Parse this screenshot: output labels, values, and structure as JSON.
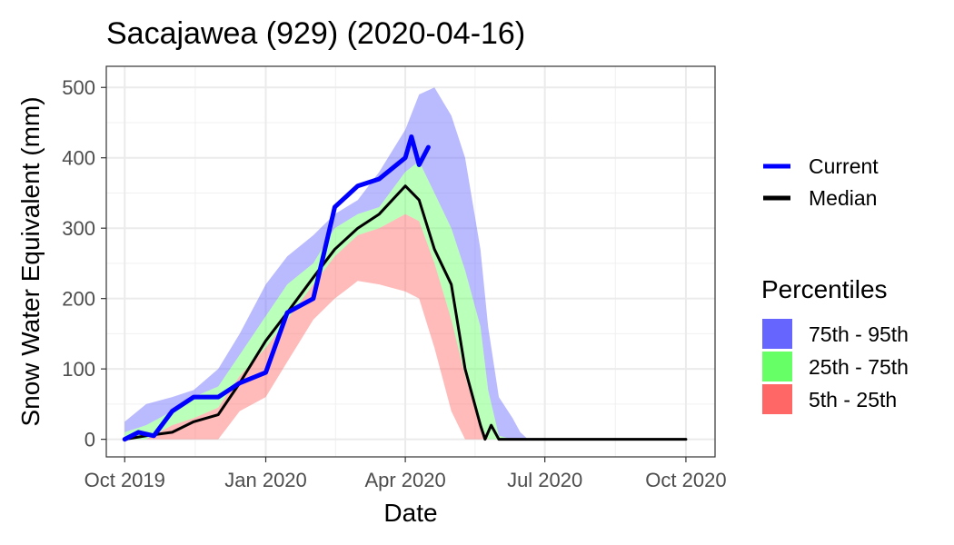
{
  "chart_data": {
    "type": "area",
    "title": "Sacajawea (929) (2020-04-16)",
    "xlabel": "Date",
    "ylabel": "Snow Water Equivalent (mm)",
    "x_ticks": [
      {
        "date": "2019-10-01",
        "label": "Oct 2019"
      },
      {
        "date": "2020-01-01",
        "label": "Jan 2020"
      },
      {
        "date": "2020-04-01",
        "label": "Apr 2020"
      },
      {
        "date": "2020-07-01",
        "label": "Jul 2020"
      },
      {
        "date": "2020-10-01",
        "label": "Oct 2020"
      }
    ],
    "xlim": [
      "2019-09-19",
      "2020-10-20"
    ],
    "y_ticks": [
      0,
      100,
      200,
      300,
      400,
      500
    ],
    "ylim": [
      -25,
      530
    ],
    "grid": true,
    "legend_placement": "right",
    "legend_lines": [
      {
        "name": "Current",
        "color": "#0000ff"
      },
      {
        "name": "Median",
        "color": "#000000"
      }
    ],
    "legend_title": "Percentiles",
    "legend_bands": [
      {
        "name": "75th - 95th",
        "color": "#6666ff"
      },
      {
        "name": "25th - 75th",
        "color": "#66ff66"
      },
      {
        "name": "5th - 25th",
        "color": "#ff6666"
      }
    ],
    "dates": [
      "2019-10-01",
      "2019-10-15",
      "2019-11-01",
      "2019-11-15",
      "2019-12-01",
      "2019-12-15",
      "2020-01-01",
      "2020-01-15",
      "2020-02-01",
      "2020-02-15",
      "2020-03-01",
      "2020-03-15",
      "2020-04-01",
      "2020-04-10",
      "2020-04-20",
      "2020-05-01",
      "2020-05-10",
      "2020-05-20",
      "2020-05-25",
      "2020-06-01",
      "2020-06-10",
      "2020-06-15",
      "2020-06-20",
      "2020-07-01",
      "2020-10-01"
    ],
    "bands": {
      "p05": [
        0,
        0,
        0,
        0,
        0,
        40,
        60,
        110,
        170,
        200,
        225,
        220,
        210,
        200,
        130,
        40,
        0,
        0,
        0,
        0,
        0,
        0,
        0,
        0,
        0
      ],
      "p25": [
        0,
        0,
        20,
        30,
        45,
        90,
        130,
        170,
        220,
        260,
        290,
        300,
        320,
        310,
        250,
        170,
        90,
        20,
        0,
        0,
        0,
        0,
        0,
        0,
        0
      ],
      "p75": [
        10,
        20,
        40,
        60,
        75,
        120,
        175,
        220,
        250,
        300,
        320,
        330,
        380,
        395,
        350,
        300,
        240,
        160,
        70,
        5,
        0,
        0,
        0,
        0,
        0
      ],
      "p95": [
        25,
        50,
        60,
        70,
        100,
        150,
        220,
        260,
        290,
        320,
        340,
        380,
        440,
        490,
        500,
        460,
        400,
        270,
        160,
        60,
        30,
        10,
        0,
        0,
        0
      ]
    },
    "series": [
      {
        "name": "Median",
        "color": "#000000",
        "x": [
          "2019-10-01",
          "2019-10-15",
          "2019-11-01",
          "2019-11-15",
          "2019-12-01",
          "2019-12-15",
          "2020-01-01",
          "2020-01-15",
          "2020-02-01",
          "2020-02-15",
          "2020-03-01",
          "2020-03-15",
          "2020-04-01",
          "2020-04-10",
          "2020-04-20",
          "2020-05-01",
          "2020-05-10",
          "2020-05-20",
          "2020-05-23",
          "2020-05-27",
          "2020-06-01",
          "2020-10-01"
        ],
        "y": [
          0,
          5,
          10,
          25,
          35,
          80,
          140,
          180,
          230,
          270,
          300,
          320,
          360,
          340,
          270,
          220,
          100,
          20,
          0,
          20,
          0,
          0
        ]
      },
      {
        "name": "Current",
        "color": "#0000ff",
        "x": [
          "2019-10-01",
          "2019-10-10",
          "2019-10-20",
          "2019-11-01",
          "2019-11-15",
          "2019-12-01",
          "2019-12-15",
          "2020-01-01",
          "2020-01-15",
          "2020-02-01",
          "2020-02-15",
          "2020-03-01",
          "2020-03-15",
          "2020-04-01",
          "2020-04-05",
          "2020-04-10",
          "2020-04-16"
        ],
        "y": [
          0,
          10,
          5,
          40,
          60,
          60,
          80,
          95,
          180,
          200,
          330,
          360,
          370,
          400,
          430,
          390,
          415
        ]
      }
    ]
  }
}
